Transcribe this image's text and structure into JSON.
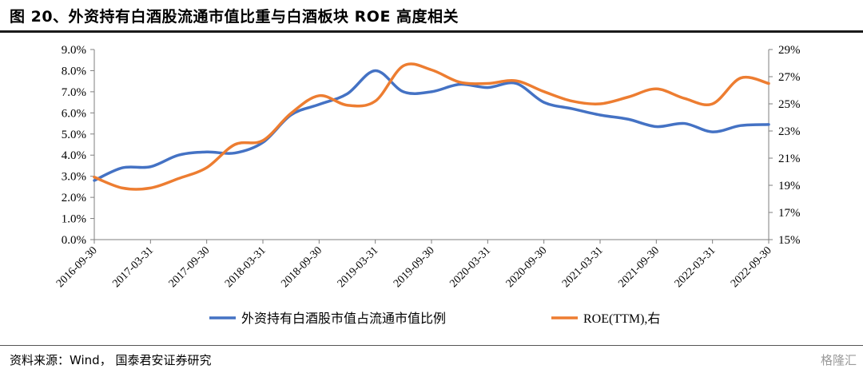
{
  "header": {
    "title": "图 20、外资持有白酒股流通市值比重与白酒板块 ROE 高度相关"
  },
  "footer": {
    "source": "资料来源：Wind，  国泰君安证券研究",
    "watermark": "格隆汇"
  },
  "colors": {
    "series1": "#4472C4",
    "series2": "#ED7D31",
    "axis": "#7f7f7f"
  },
  "chart_data": {
    "type": "line",
    "title": "",
    "categories": [
      "2016-09-30",
      "2017-03-31",
      "2017-09-30",
      "2018-03-31",
      "2018-09-30",
      "2019-03-31",
      "2019-09-30",
      "2020-03-31",
      "2020-09-30",
      "2021-03-31",
      "2021-09-30",
      "2022-03-31",
      "2022-09-30"
    ],
    "y_left": {
      "ylim": [
        0,
        9
      ],
      "ticks": [
        "0.0%",
        "1.0%",
        "2.0%",
        "3.0%",
        "4.0%",
        "5.0%",
        "6.0%",
        "7.0%",
        "8.0%",
        "9.0%"
      ]
    },
    "y_right": {
      "ylim": [
        15,
        29
      ],
      "ticks": [
        "15%",
        "17%",
        "19%",
        "21%",
        "23%",
        "25%",
        "27%",
        "29%"
      ]
    },
    "grid": false,
    "legend_position": "bottom",
    "series": [
      {
        "name": "外资持有白酒股市值占流通市值比例",
        "axis": "left",
        "x": [
          0,
          0.5,
          1,
          1.5,
          2,
          2.5,
          3,
          3.5,
          4,
          4.5,
          5,
          5.5,
          6,
          6.5,
          7,
          7.5,
          8,
          8.5,
          9,
          9.5,
          10,
          10.5,
          11,
          11.5,
          12
        ],
        "values": [
          2.8,
          3.4,
          3.45,
          4.0,
          4.15,
          4.1,
          4.6,
          5.9,
          6.4,
          6.9,
          8.0,
          7.0,
          7.0,
          7.35,
          7.2,
          7.4,
          6.5,
          6.2,
          5.9,
          5.7,
          5.35,
          5.5,
          5.1,
          5.4,
          5.45
        ]
      },
      {
        "name": "ROE(TTM),右",
        "axis": "right",
        "x": [
          0,
          0.5,
          1,
          1.5,
          2,
          2.5,
          3,
          3.5,
          4,
          4.5,
          5,
          5.5,
          6,
          6.5,
          7,
          7.5,
          8,
          8.5,
          9,
          9.5,
          10,
          10.5,
          11,
          11.5,
          12
        ],
        "values": [
          19.6,
          18.8,
          18.8,
          19.5,
          20.3,
          22.0,
          22.3,
          24.3,
          25.6,
          24.9,
          25.2,
          27.8,
          27.5,
          26.6,
          26.5,
          26.7,
          25.9,
          25.2,
          25.0,
          25.5,
          26.1,
          25.4,
          25.0,
          26.9,
          26.5
        ]
      }
    ]
  }
}
